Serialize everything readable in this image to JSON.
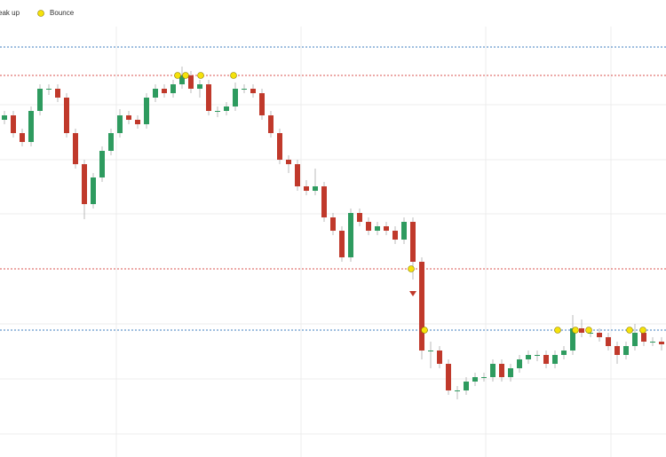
{
  "chart_data": {
    "type": "candlestick",
    "xlim": [
      -0.5,
      74.5
    ],
    "ylim": [
      0,
      515
    ],
    "up_color": "#2e9b5f",
    "down_color": "#c0392b",
    "candles": {
      "open": [
        380,
        385,
        365,
        355,
        390,
        415,
        415,
        405,
        365,
        330,
        285,
        315,
        345,
        365,
        385,
        380,
        375,
        405,
        415,
        410,
        420,
        430,
        415,
        420,
        390,
        390,
        395,
        415,
        415,
        410,
        385,
        365,
        335,
        330,
        305,
        300,
        305,
        270,
        255,
        225,
        275,
        265,
        255,
        260,
        255,
        245,
        265,
        220,
        120,
        120,
        105,
        75,
        75,
        85,
        90,
        90,
        105,
        90,
        100,
        110,
        115,
        115,
        105,
        115,
        120,
        145,
        140,
        140,
        135,
        125,
        115,
        125,
        140,
        130,
        130
      ],
      "high": [
        390,
        390,
        370,
        395,
        420,
        420,
        420,
        410,
        370,
        335,
        320,
        350,
        370,
        392,
        390,
        385,
        410,
        420,
        420,
        425,
        440,
        435,
        425,
        425,
        395,
        400,
        422,
        420,
        420,
        415,
        390,
        370,
        340,
        335,
        312,
        325,
        310,
        275,
        260,
        280,
        280,
        270,
        265,
        265,
        260,
        270,
        270,
        225,
        130,
        125,
        110,
        80,
        90,
        95,
        95,
        110,
        110,
        105,
        115,
        120,
        120,
        120,
        120,
        125,
        160,
        155,
        145,
        145,
        140,
        130,
        130,
        150,
        145,
        135,
        135
      ],
      "low": [
        375,
        360,
        350,
        350,
        385,
        408,
        400,
        360,
        325,
        268,
        280,
        310,
        340,
        360,
        375,
        370,
        370,
        400,
        405,
        405,
        415,
        410,
        405,
        385,
        383,
        385,
        390,
        410,
        405,
        380,
        360,
        330,
        320,
        300,
        295,
        295,
        265,
        250,
        220,
        220,
        260,
        250,
        250,
        250,
        240,
        240,
        200,
        110,
        100,
        100,
        70,
        65,
        70,
        80,
        85,
        85,
        85,
        85,
        95,
        105,
        108,
        100,
        100,
        110,
        115,
        135,
        135,
        130,
        120,
        105,
        110,
        120,
        125,
        125,
        120
      ],
      "close": [
        385,
        365,
        355,
        390,
        415,
        415,
        405,
        365,
        330,
        285,
        315,
        345,
        365,
        385,
        380,
        375,
        405,
        415,
        410,
        420,
        430,
        415,
        420,
        390,
        390,
        395,
        415,
        415,
        410,
        385,
        365,
        335,
        330,
        305,
        300,
        305,
        270,
        255,
        225,
        275,
        265,
        255,
        260,
        255,
        245,
        265,
        220,
        120,
        120,
        105,
        75,
        75,
        85,
        90,
        90,
        105,
        90,
        100,
        110,
        115,
        115,
        105,
        115,
        120,
        145,
        140,
        140,
        135,
        125,
        115,
        125,
        140,
        130,
        130,
        127
      ]
    },
    "levels": [
      {
        "value": 462,
        "color": "#3f7fbf"
      },
      {
        "value": 430,
        "color": "#d9534f"
      },
      {
        "value": 212,
        "color": "#d9534f"
      },
      {
        "value": 143,
        "color": "#3f7fbf"
      }
    ],
    "series": [
      {
        "name": "eak up",
        "color": "#2e9b5f",
        "shape": "triangle-up",
        "x": [],
        "values": []
      },
      {
        "name": "Bounce",
        "color": "#f5e20b",
        "shape": "circle",
        "x": [
          19.5,
          20.4,
          22.1,
          25.8,
          45.8,
          47.3,
          62.3,
          64.3,
          65.8,
          70.4,
          71.9
        ],
        "values": [
          430,
          430,
          430,
          430,
          212,
          143,
          143,
          143,
          143,
          143,
          143
        ]
      },
      {
        "color": "#c0392b",
        "shape": "triangle-down",
        "x": [
          46.0
        ],
        "values": [
          184
        ]
      }
    ]
  }
}
